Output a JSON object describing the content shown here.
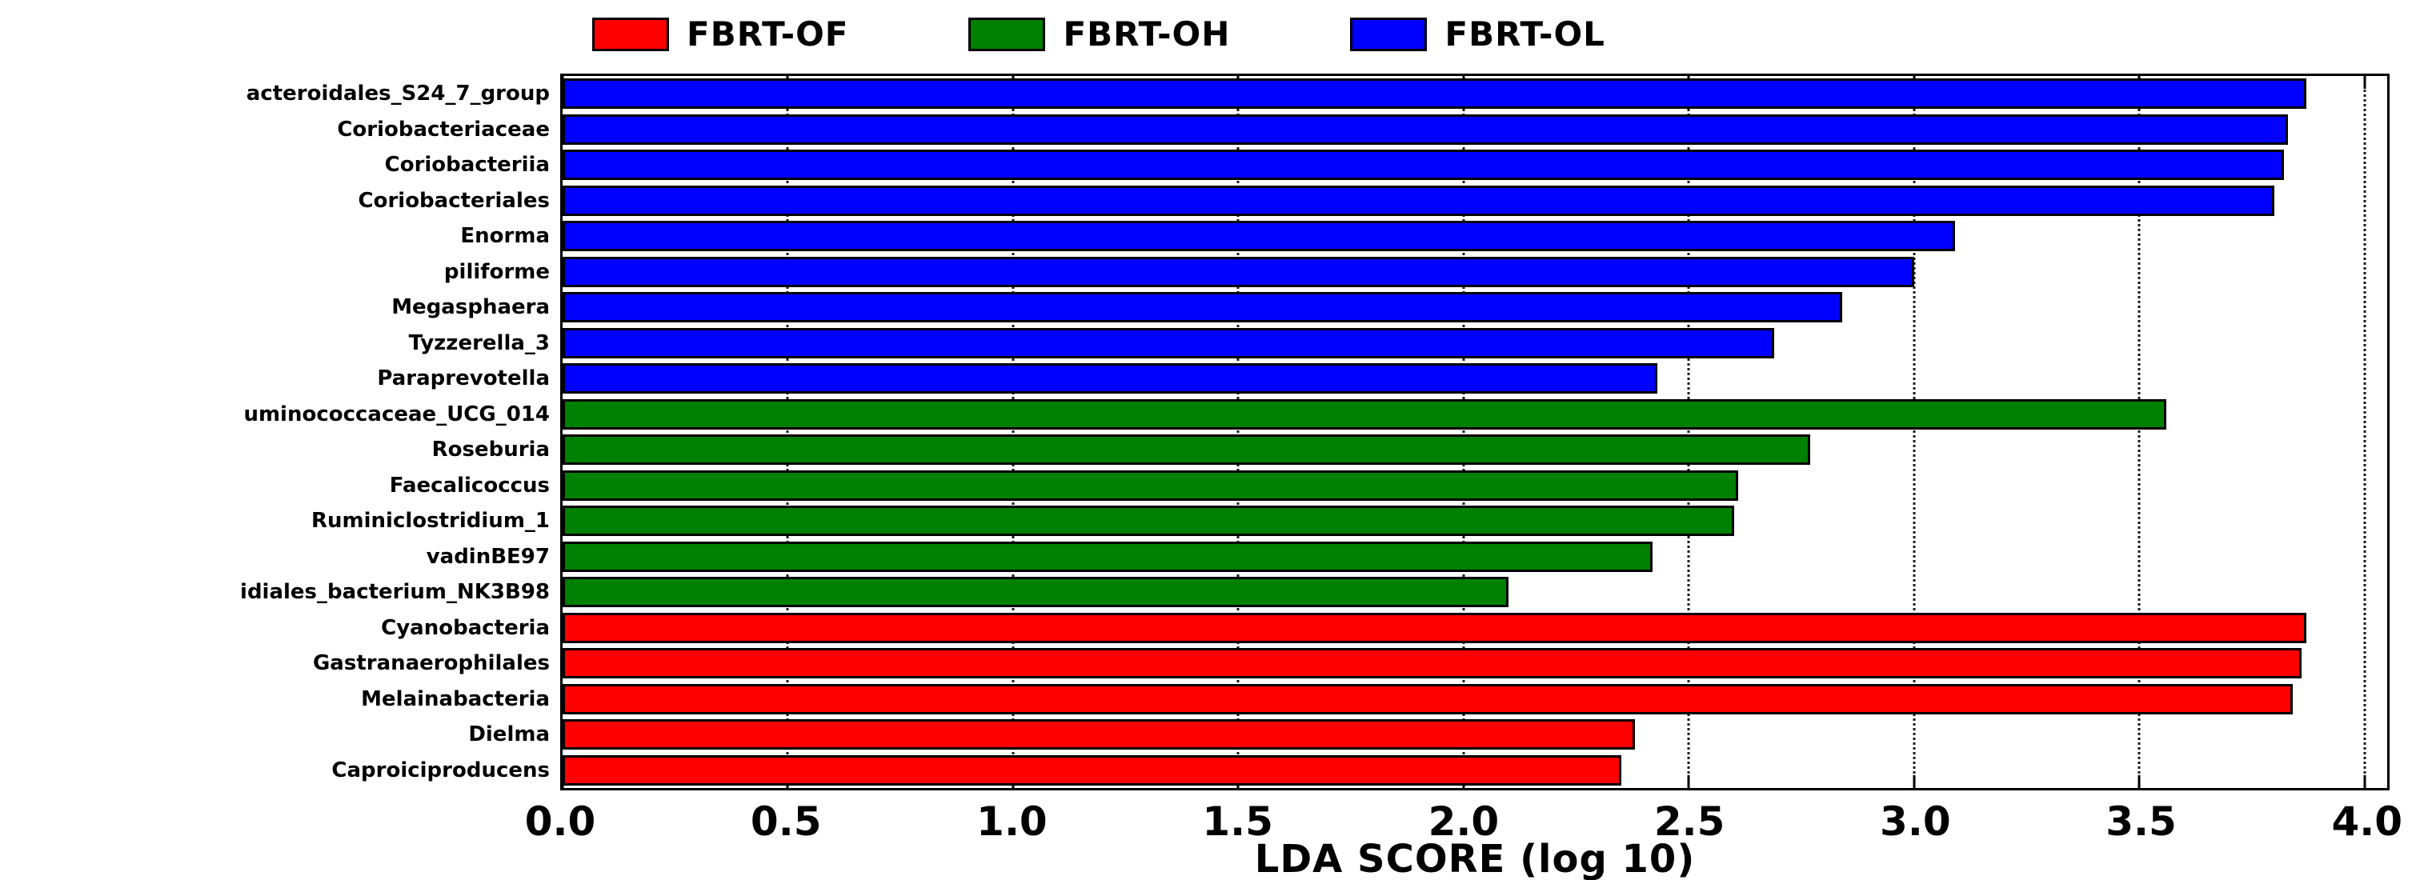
{
  "legend": [
    {
      "label": "FBRT-OF",
      "color": "#ff0000"
    },
    {
      "label": "FBRT-OH",
      "color": "#008000"
    },
    {
      "label": "FBRT-OL",
      "color": "#0000ff"
    }
  ],
  "chart_data": {
    "type": "bar",
    "orientation": "horizontal",
    "title": "",
    "xlabel": "LDA SCORE (log 10)",
    "ylabel": "",
    "xlim": [
      0,
      4.05
    ],
    "xticks": [
      0.0,
      0.5,
      1.0,
      1.5,
      2.0,
      2.5,
      3.0,
      3.5,
      4.0
    ],
    "xtick_labels": [
      "0.0",
      "0.5",
      "1.0",
      "1.5",
      "2.0",
      "2.5",
      "3.0",
      "3.5",
      "4.0"
    ],
    "grid": "vertical-dotted",
    "legend_position": "top",
    "bars": [
      {
        "label": "acteroidales_S24_7_group",
        "group": "FBRT-OL",
        "value": 3.87
      },
      {
        "label": "Coriobacteriaceae",
        "group": "FBRT-OL",
        "value": 3.83
      },
      {
        "label": "Coriobacteriia",
        "group": "FBRT-OL",
        "value": 3.82
      },
      {
        "label": "Coriobacteriales",
        "group": "FBRT-OL",
        "value": 3.8
      },
      {
        "label": "Enorma",
        "group": "FBRT-OL",
        "value": 3.09
      },
      {
        "label": "piliforme",
        "group": "FBRT-OL",
        "value": 3.0
      },
      {
        "label": "Megasphaera",
        "group": "FBRT-OL",
        "value": 2.84
      },
      {
        "label": "Tyzzerella_3",
        "group": "FBRT-OL",
        "value": 2.69
      },
      {
        "label": "Paraprevotella",
        "group": "FBRT-OL",
        "value": 2.43
      },
      {
        "label": "uminococcaceae_UCG_014",
        "group": "FBRT-OH",
        "value": 3.56
      },
      {
        "label": "Roseburia",
        "group": "FBRT-OH",
        "value": 2.77
      },
      {
        "label": "Faecalicoccus",
        "group": "FBRT-OH",
        "value": 2.61
      },
      {
        "label": "Ruminiclostridium_1",
        "group": "FBRT-OH",
        "value": 2.6
      },
      {
        "label": "vadinBE97",
        "group": "FBRT-OH",
        "value": 2.42
      },
      {
        "label": "idiales_bacterium_NK3B98",
        "group": "FBRT-OH",
        "value": 2.1
      },
      {
        "label": "Cyanobacteria",
        "group": "FBRT-OF",
        "value": 3.87
      },
      {
        "label": "Gastranaerophilales",
        "group": "FBRT-OF",
        "value": 3.86
      },
      {
        "label": "Melainabacteria",
        "group": "FBRT-OF",
        "value": 3.84
      },
      {
        "label": "Dielma",
        "group": "FBRT-OF",
        "value": 2.38
      },
      {
        "label": "Caproiciproducens",
        "group": "FBRT-OF",
        "value": 2.35
      }
    ]
  }
}
